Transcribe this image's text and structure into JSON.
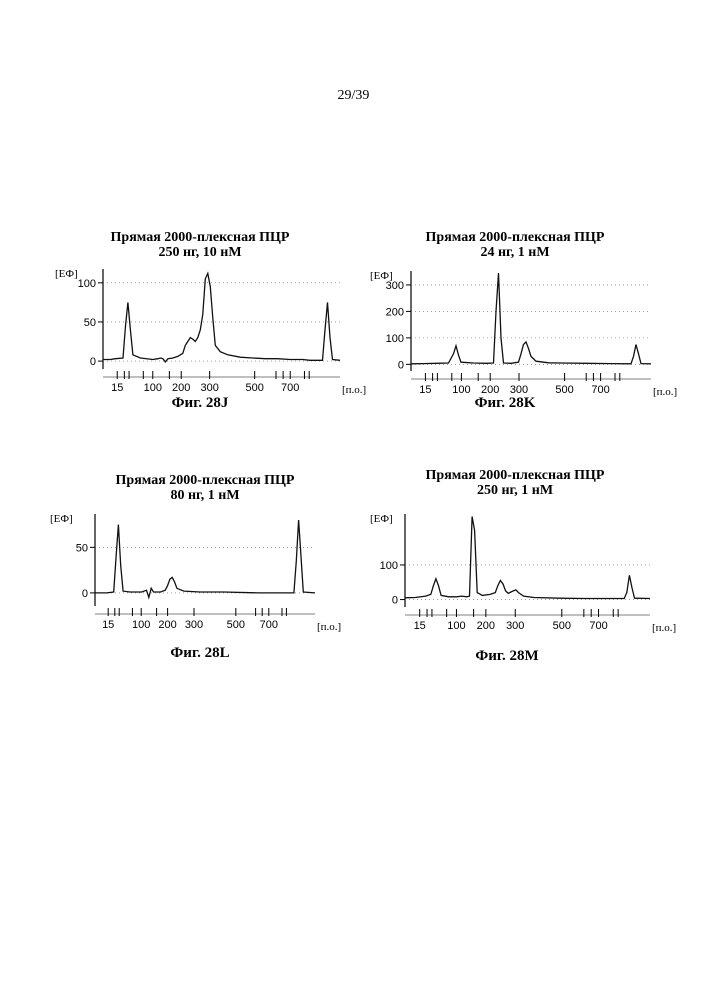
{
  "page_number": "29/39",
  "panels": [
    {
      "id": "J",
      "title_line1": "Прямая 2000-плексная ПЦР",
      "title_line2": "250 нг, 10 нМ",
      "caption": "Фиг. 28J"
    },
    {
      "id": "K",
      "title_line1": "Прямая 2000-плексная ПЦР",
      "title_line2": "24 нг, 1 нМ",
      "caption": "Фиг. 28K"
    },
    {
      "id": "L",
      "title_line1": "Прямая 2000-плексная ПЦР",
      "title_line2": "80 нг, 1 нМ",
      "caption": "Фиг. 28L"
    },
    {
      "id": "M",
      "title_line1": "Прямая 2000-плексная ПЦР",
      "title_line2": "250 нг, 1 нМ",
      "caption": "Фиг. 28M"
    }
  ],
  "chart_data": [
    {
      "type": "line",
      "title": "Прямая 2000-плексная ПЦР 250 нг, 10 нМ",
      "ylabel": "[ЕФ]",
      "xlabel": "[п.о.]",
      "x_ticks": [
        "15",
        "100",
        "200",
        "300",
        "500",
        "700"
      ],
      "y_ticks": [
        0,
        50,
        100
      ],
      "ylim": [
        -5,
        110
      ],
      "series": [
        {
          "points": [
            [
              0,
              2
            ],
            [
              3,
              2
            ],
            [
              5,
              3
            ],
            [
              8,
              4
            ],
            [
              9,
              45
            ],
            [
              10,
              75
            ],
            [
              11,
              40
            ],
            [
              12,
              8
            ],
            [
              15,
              4
            ],
            [
              20,
              2
            ],
            [
              22,
              3
            ],
            [
              23,
              4
            ],
            [
              24,
              3
            ],
            [
              25,
              -1
            ],
            [
              26,
              3
            ],
            [
              28,
              4
            ],
            [
              30,
              6
            ],
            [
              32,
              10
            ],
            [
              33,
              20
            ],
            [
              34,
              25
            ],
            [
              35,
              30
            ],
            [
              36,
              28
            ],
            [
              37,
              25
            ],
            [
              38,
              30
            ],
            [
              39,
              40
            ],
            [
              40,
              60
            ],
            [
              41,
              105
            ],
            [
              42,
              112
            ],
            [
              43,
              95
            ],
            [
              44,
              55
            ],
            [
              45,
              20
            ],
            [
              47,
              12
            ],
            [
              50,
              8
            ],
            [
              55,
              5
            ],
            [
              60,
              4
            ],
            [
              65,
              3
            ],
            [
              70,
              3
            ],
            [
              75,
              2
            ],
            [
              80,
              2
            ],
            [
              83,
              1
            ],
            [
              85,
              1
            ],
            [
              88,
              1
            ],
            [
              89,
              40
            ],
            [
              90,
              75
            ],
            [
              91,
              30
            ],
            [
              92,
              2
            ],
            [
              95,
              1
            ]
          ]
        }
      ]
    },
    {
      "type": "line",
      "title": "Прямая 2000-плексная ПЦР 24 нг, 1 нМ",
      "ylabel": "[ЕФ]",
      "xlabel": "[п.о.]",
      "x_ticks": [
        "15",
        "100",
        "200",
        "300",
        "500",
        "700"
      ],
      "y_ticks": [
        0,
        100,
        200,
        300
      ],
      "ylim": [
        -10,
        330
      ],
      "series": [
        {
          "points": [
            [
              0,
              2
            ],
            [
              5,
              3
            ],
            [
              10,
              4
            ],
            [
              15,
              5
            ],
            [
              17,
              40
            ],
            [
              18,
              70
            ],
            [
              19,
              35
            ],
            [
              20,
              8
            ],
            [
              25,
              5
            ],
            [
              30,
              4
            ],
            [
              33,
              5
            ],
            [
              34,
              200
            ],
            [
              35,
              345
            ],
            [
              36,
              100
            ],
            [
              37,
              5
            ],
            [
              40,
              4
            ],
            [
              43,
              8
            ],
            [
              44,
              40
            ],
            [
              45,
              75
            ],
            [
              46,
              85
            ],
            [
              47,
              60
            ],
            [
              48,
              30
            ],
            [
              50,
              12
            ],
            [
              55,
              6
            ],
            [
              60,
              5
            ],
            [
              70,
              4
            ],
            [
              80,
              3
            ],
            [
              88,
              2
            ],
            [
              89,
              30
            ],
            [
              90,
              75
            ],
            [
              91,
              40
            ],
            [
              92,
              3
            ],
            [
              96,
              2
            ]
          ]
        }
      ]
    },
    {
      "type": "line",
      "title": "Прямая 2000-плексная ПЦР 80 нг, 1 нМ",
      "ylabel": "[ЕФ]",
      "xlabel": "[п.о.]",
      "x_ticks": [
        "15",
        "100",
        "200",
        "300",
        "500",
        "700"
      ],
      "y_ticks": [
        0,
        50
      ],
      "ylim": [
        -10,
        80
      ],
      "series": [
        {
          "points": [
            [
              0,
              0
            ],
            [
              5,
              0
            ],
            [
              8,
              1
            ],
            [
              9,
              40
            ],
            [
              10,
              75
            ],
            [
              11,
              30
            ],
            [
              12,
              2
            ],
            [
              15,
              1
            ],
            [
              20,
              1
            ],
            [
              22,
              3
            ],
            [
              23,
              -5
            ],
            [
              24,
              5
            ],
            [
              25,
              1
            ],
            [
              28,
              1
            ],
            [
              30,
              3
            ],
            [
              31,
              8
            ],
            [
              32,
              15
            ],
            [
              33,
              17
            ],
            [
              34,
              12
            ],
            [
              35,
              5
            ],
            [
              38,
              2
            ],
            [
              45,
              1
            ],
            [
              55,
              1
            ],
            [
              70,
              0
            ],
            [
              80,
              0
            ],
            [
              85,
              0
            ],
            [
              86,
              35
            ],
            [
              87,
              80
            ],
            [
              88,
              40
            ],
            [
              89,
              1
            ],
            [
              94,
              0
            ]
          ]
        }
      ]
    },
    {
      "type": "line",
      "title": "Прямая 2000-плексная ПЦР 250 нг, 1 нМ",
      "ylabel": "[ЕФ]",
      "xlabel": "[п.о.]",
      "x_ticks": [
        "15",
        "100",
        "200",
        "300",
        "500",
        "700"
      ],
      "y_ticks": [
        0,
        100
      ],
      "ylim": [
        -10,
        230
      ],
      "series": [
        {
          "points": [
            [
              0,
              5
            ],
            [
              4,
              6
            ],
            [
              8,
              10
            ],
            [
              10,
              15
            ],
            [
              11,
              40
            ],
            [
              12,
              60
            ],
            [
              13,
              40
            ],
            [
              14,
              12
            ],
            [
              17,
              8
            ],
            [
              20,
              8
            ],
            [
              22,
              10
            ],
            [
              24,
              8
            ],
            [
              25,
              10
            ],
            [
              26,
              240
            ],
            [
              27,
              200
            ],
            [
              28,
              20
            ],
            [
              30,
              12
            ],
            [
              33,
              15
            ],
            [
              35,
              20
            ],
            [
              36,
              40
            ],
            [
              37,
              55
            ],
            [
              38,
              45
            ],
            [
              39,
              25
            ],
            [
              40,
              18
            ],
            [
              42,
              25
            ],
            [
              43,
              28
            ],
            [
              44,
              20
            ],
            [
              46,
              10
            ],
            [
              50,
              6
            ],
            [
              60,
              4
            ],
            [
              70,
              3
            ],
            [
              80,
              3
            ],
            [
              85,
              3
            ],
            [
              86,
              20
            ],
            [
              87,
              70
            ],
            [
              88,
              35
            ],
            [
              89,
              4
            ],
            [
              95,
              3
            ]
          ]
        }
      ]
    }
  ]
}
